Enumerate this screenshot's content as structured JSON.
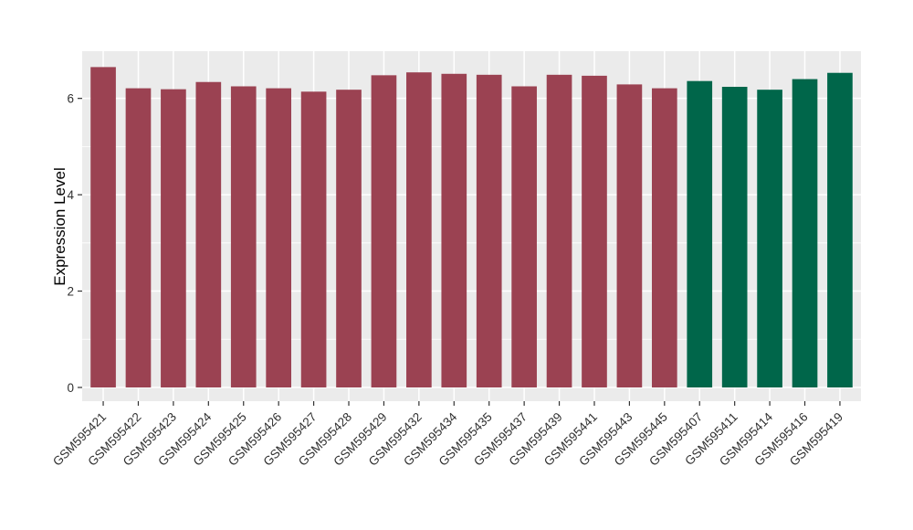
{
  "chart_data": {
    "type": "bar",
    "title": "",
    "xlabel": "",
    "ylabel": "Expression Level",
    "ylim": [
      0,
      6.98
    ],
    "yticks_major": [
      0,
      2,
      4,
      6
    ],
    "yticks_minor": [
      1,
      3,
      5
    ],
    "ytick_labels": [
      "0",
      "2",
      "4",
      "6"
    ],
    "grid": true,
    "legend_visible": false,
    "x_tick_rotation_deg": 45,
    "categories": [
      "GSM595421",
      "GSM595422",
      "GSM595423",
      "GSM595424",
      "GSM595425",
      "GSM595426",
      "GSM595427",
      "GSM595428",
      "GSM595429",
      "GSM595432",
      "GSM595434",
      "GSM595435",
      "GSM595437",
      "GSM595439",
      "GSM595441",
      "GSM595443",
      "GSM595445",
      "GSM595407",
      "GSM595411",
      "GSM595414",
      "GSM595416",
      "GSM595419"
    ],
    "values": [
      6.65,
      6.21,
      6.19,
      6.34,
      6.25,
      6.21,
      6.14,
      6.18,
      6.48,
      6.54,
      6.51,
      6.49,
      6.25,
      6.49,
      6.47,
      6.29,
      6.21,
      6.36,
      6.24,
      6.18,
      6.4,
      6.53
    ],
    "bar_group": [
      0,
      0,
      0,
      0,
      0,
      0,
      0,
      0,
      0,
      0,
      0,
      0,
      0,
      0,
      0,
      0,
      0,
      1,
      1,
      1,
      1,
      1
    ],
    "group_colors": [
      "#9B4252",
      "#00664A"
    ],
    "panel_background": "#EBEBEB",
    "gridline_color": "#FFFFFF",
    "tick_color": "#333333",
    "tick_label_color": "#303030",
    "axis_title_color": "#000000",
    "figure_background": "#FFFFFF"
  }
}
